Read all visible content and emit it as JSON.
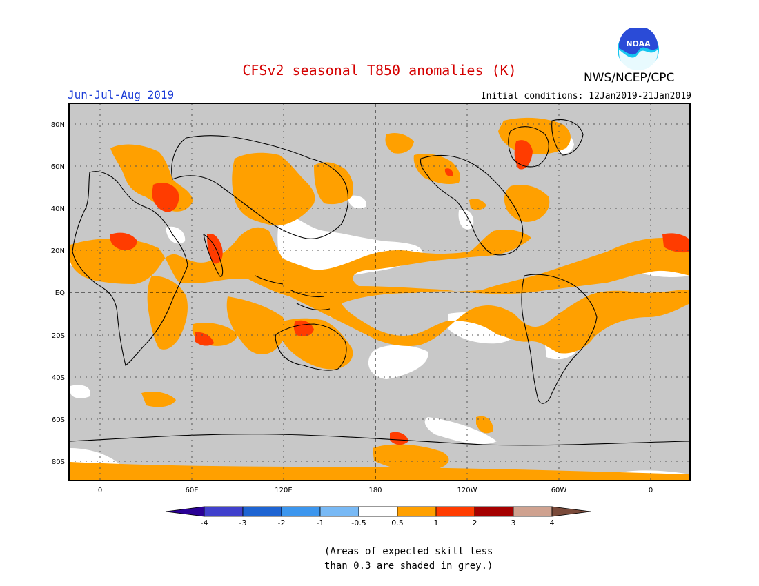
{
  "header": {
    "title": "CFSv2 seasonal T850 anomalies (K)",
    "season": "Jun-Jul-Aug 2019",
    "initial_conditions": "Initial conditions: 12Jan2019-21Jan2019",
    "agency": "NWS/NCEP/CPC",
    "logo_text": "NOAA"
  },
  "map": {
    "lat_labels": [
      "80N",
      "60N",
      "40N",
      "20N",
      "EQ",
      "20S",
      "40S",
      "60S",
      "80S"
    ],
    "lon_labels": [
      "0",
      "60E",
      "120E",
      "180",
      "120W",
      "60W",
      "0"
    ],
    "colors": {
      "grey": "#c8c8c8",
      "white": "#ffffff",
      "orange": "#ffa000",
      "red": "#ff3c00",
      "coast": "#000000"
    }
  },
  "colorbar": {
    "labels": [
      "-4",
      "-3",
      "-2",
      "-1",
      "-0.5",
      "0.5",
      "1",
      "2",
      "3",
      "4"
    ],
    "colors": [
      "#2a0096",
      "#4040cc",
      "#1e64d2",
      "#3c96ee",
      "#78b9f5",
      "#ffffff",
      "#ffa000",
      "#ff3c00",
      "#a50000",
      "#cfa290",
      "#7a4a3a"
    ]
  },
  "footnote": {
    "line1": "(Areas of expected skill less",
    "line2": "than 0.3 are shaded in grey.)"
  }
}
